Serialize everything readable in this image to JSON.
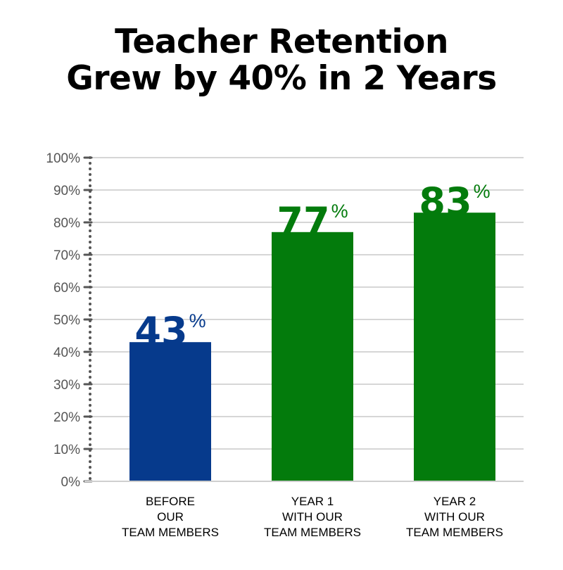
{
  "title": {
    "line1": "Teacher Retention",
    "line2": "Grew by 40% in 2 Years"
  },
  "colors": {
    "before": "#063a8c",
    "after": "#037b0c",
    "grid": "#d6d6d6",
    "axis": "#555555"
  },
  "chart_data": {
    "type": "bar",
    "categories": [
      [
        "BEFORE",
        "OUR",
        "TEAM MEMBERS"
      ],
      [
        "YEAR 1",
        "WITH OUR",
        "TEAM MEMBERS"
      ],
      [
        "YEAR 2",
        "WITH OUR",
        "TEAM MEMBERS"
      ]
    ],
    "values": [
      43,
      77,
      83
    ],
    "value_labels": [
      "43",
      "77",
      "83"
    ],
    "value_suffix": "%",
    "bar_colors": [
      "#063a8c",
      "#037b0c",
      "#037b0c"
    ],
    "yticks": [
      "0%",
      "10%",
      "20%",
      "30%",
      "40%",
      "50%",
      "60%",
      "70%",
      "80%",
      "90%",
      "100%"
    ],
    "ylim": [
      0,
      100
    ],
    "grid": true,
    "legend": "none"
  }
}
